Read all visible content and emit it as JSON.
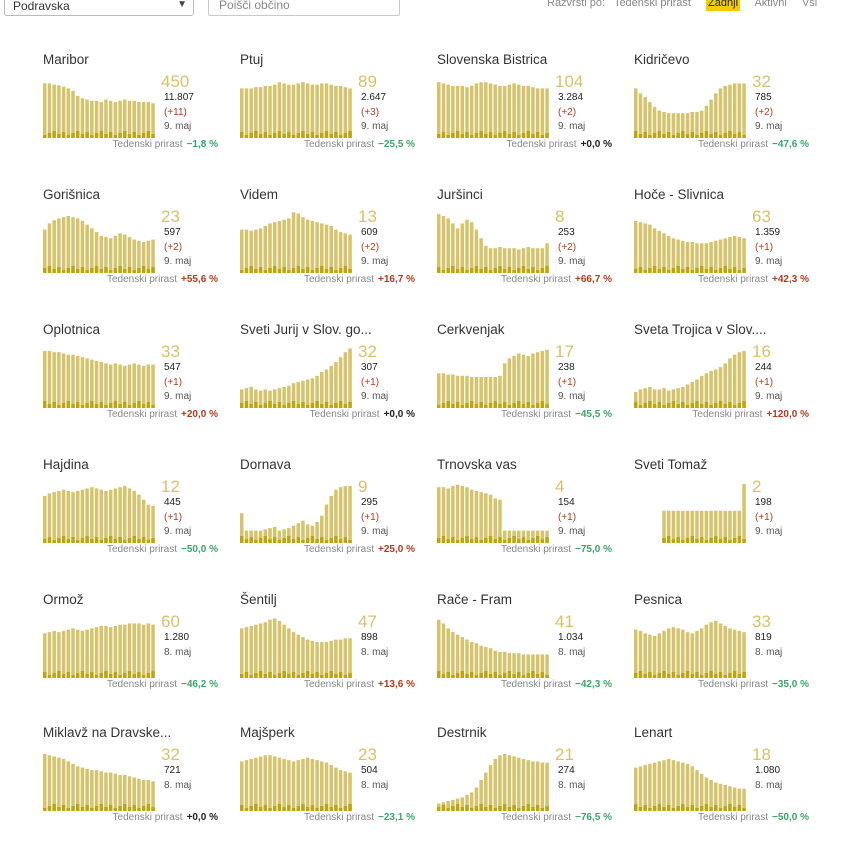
{
  "filters": {
    "region": "Podravska",
    "search_placeholder": "Poišči občino",
    "sort_label": "Razvrsti po:",
    "sort_options": [
      "Tedenski prirast",
      "Zadnji",
      "Aktivni",
      "Vsi"
    ],
    "sort_active": 1
  },
  "growth_label": "Tedenski prirast",
  "colors": {
    "bar": "#d6c36b",
    "bar_highlight": "#b9a000",
    "accent": "#f2cd00",
    "negative": "#3aa56b",
    "positive": "#b13b1f"
  },
  "municipalities": [
    {
      "name": "Maribor",
      "active": "450",
      "total": "11.807",
      "delta": "(+11)",
      "date": "9. maj",
      "growth": "−1,8 %",
      "trend": "neg",
      "bars": [
        0.88,
        0.88,
        0.86,
        0.85,
        0.83,
        0.8,
        0.76,
        0.68,
        0.64,
        0.62,
        0.6,
        0.6,
        0.58,
        0.62,
        0.6,
        0.58,
        0.6,
        0.62,
        0.6,
        0.6,
        0.58,
        0.58,
        0.58,
        0.56
      ]
    },
    {
      "name": "Ptuj",
      "active": "89",
      "total": "2.647",
      "delta": "(+3)",
      "date": "9. maj",
      "growth": "−25,5 %",
      "trend": "neg",
      "bars": [
        0.8,
        0.8,
        0.8,
        0.82,
        0.82,
        0.84,
        0.84,
        0.86,
        0.9,
        0.88,
        0.86,
        0.86,
        0.88,
        0.9,
        0.88,
        0.86,
        0.86,
        0.88,
        0.88,
        0.86,
        0.84,
        0.84,
        0.82,
        0.8
      ]
    },
    {
      "name": "Slovenska Bistrica",
      "active": "104",
      "total": "3.284",
      "delta": "(+2)",
      "date": "9. maj",
      "growth": "+0,0 %",
      "trend": "zero",
      "bars": [
        0.9,
        0.88,
        0.86,
        0.84,
        0.84,
        0.84,
        0.82,
        0.84,
        0.88,
        0.9,
        0.9,
        0.88,
        0.86,
        0.84,
        0.84,
        0.86,
        0.88,
        0.86,
        0.84,
        0.84,
        0.82,
        0.8,
        0.8,
        0.8
      ]
    },
    {
      "name": "Kidričevo",
      "active": "32",
      "total": "785",
      "delta": "(+2)",
      "date": "9. maj",
      "growth": "−47,6 %",
      "trend": "neg",
      "bars": [
        0.8,
        0.72,
        0.66,
        0.58,
        0.5,
        0.44,
        0.42,
        0.4,
        0.4,
        0.4,
        0.4,
        0.4,
        0.42,
        0.42,
        0.44,
        0.52,
        0.62,
        0.72,
        0.8,
        0.84,
        0.86,
        0.88,
        0.88,
        0.88
      ]
    },
    {
      "name": "Gorišnica",
      "active": "23",
      "total": "597",
      "delta": "(+2)",
      "date": "9. maj",
      "growth": "+55,6 %",
      "trend": "pos",
      "bars": [
        0.7,
        0.8,
        0.85,
        0.88,
        0.9,
        0.92,
        0.9,
        0.88,
        0.84,
        0.78,
        0.72,
        0.66,
        0.6,
        0.58,
        0.56,
        0.6,
        0.64,
        0.62,
        0.58,
        0.54,
        0.52,
        0.5,
        0.52,
        0.54
      ]
    },
    {
      "name": "Videm",
      "active": "13",
      "total": "609",
      "delta": "(+2)",
      "date": "9. maj",
      "growth": "+16,7 %",
      "trend": "pos",
      "bars": [
        0.7,
        0.7,
        0.68,
        0.7,
        0.72,
        0.76,
        0.8,
        0.82,
        0.84,
        0.86,
        0.88,
        0.98,
        0.96,
        0.9,
        0.86,
        0.84,
        0.82,
        0.8,
        0.78,
        0.76,
        0.7,
        0.66,
        0.64,
        0.62
      ]
    },
    {
      "name": "Juršinci",
      "active": "8",
      "total": "253",
      "delta": "(+2)",
      "date": "9. maj",
      "growth": "+66,7 %",
      "trend": "pos",
      "bars": [
        0.95,
        0.92,
        0.88,
        0.8,
        0.72,
        0.8,
        0.86,
        0.82,
        0.7,
        0.56,
        0.44,
        0.4,
        0.4,
        0.42,
        0.4,
        0.4,
        0.4,
        0.38,
        0.4,
        0.42,
        0.4,
        0.4,
        0.4,
        0.48
      ]
    },
    {
      "name": "Hoče - Slivnica",
      "active": "63",
      "total": "1.359",
      "delta": "(+1)",
      "date": "9. maj",
      "growth": "+42,3 %",
      "trend": "pos",
      "bars": [
        0.84,
        0.82,
        0.8,
        0.78,
        0.72,
        0.68,
        0.64,
        0.6,
        0.56,
        0.54,
        0.52,
        0.5,
        0.5,
        0.48,
        0.48,
        0.48,
        0.5,
        0.52,
        0.54,
        0.56,
        0.58,
        0.6,
        0.58,
        0.56
      ]
    },
    {
      "name": "Oplotnica",
      "active": "33",
      "total": "547",
      "delta": "(+1)",
      "date": "9. maj",
      "growth": "+20,0 %",
      "trend": "pos",
      "bars": [
        0.92,
        0.92,
        0.9,
        0.9,
        0.88,
        0.86,
        0.86,
        0.84,
        0.82,
        0.8,
        0.78,
        0.76,
        0.74,
        0.72,
        0.7,
        0.72,
        0.7,
        0.68,
        0.7,
        0.72,
        0.7,
        0.68,
        0.7,
        0.7
      ]
    },
    {
      "name": "Sveti Jurij v Slov. go...",
      "active": "32",
      "total": "307",
      "delta": "(+1)",
      "date": "9. maj",
      "growth": "+0,0 %",
      "trend": "zero",
      "bars": [
        0.3,
        0.32,
        0.34,
        0.3,
        0.28,
        0.3,
        0.28,
        0.3,
        0.32,
        0.34,
        0.36,
        0.4,
        0.42,
        0.44,
        0.46,
        0.48,
        0.52,
        0.58,
        0.62,
        0.68,
        0.74,
        0.82,
        0.9,
        0.96
      ]
    },
    {
      "name": "Cerkvenjak",
      "active": "17",
      "total": "238",
      "delta": "(+1)",
      "date": "9. maj",
      "growth": "−45,5 %",
      "trend": "neg",
      "bars": [
        0.56,
        0.56,
        0.54,
        0.54,
        0.52,
        0.52,
        0.52,
        0.5,
        0.5,
        0.5,
        0.5,
        0.5,
        0.5,
        0.52,
        0.72,
        0.8,
        0.84,
        0.88,
        0.86,
        0.84,
        0.88,
        0.9,
        0.92,
        0.94
      ]
    },
    {
      "name": "Sveta Trojica v Slov....",
      "active": "16",
      "total": "244",
      "delta": "(+1)",
      "date": "9. maj",
      "growth": "+120,0 %",
      "trend": "pos",
      "bars": [
        0.26,
        0.3,
        0.32,
        0.34,
        0.3,
        0.3,
        0.32,
        0.28,
        0.3,
        0.32,
        0.34,
        0.38,
        0.42,
        0.46,
        0.52,
        0.56,
        0.6,
        0.62,
        0.66,
        0.72,
        0.8,
        0.86,
        0.9,
        0.92
      ]
    },
    {
      "name": "Hajdina",
      "active": "12",
      "total": "445",
      "delta": "(+1)",
      "date": "9. maj",
      "growth": "−50,0 %",
      "trend": "neg",
      "bars": [
        0.76,
        0.8,
        0.82,
        0.84,
        0.86,
        0.84,
        0.82,
        0.84,
        0.86,
        0.88,
        0.9,
        0.88,
        0.86,
        0.84,
        0.86,
        0.88,
        0.9,
        0.92,
        0.88,
        0.84,
        0.78,
        0.7,
        0.62,
        0.6
      ]
    },
    {
      "name": "Dornava",
      "active": "9",
      "total": "295",
      "delta": "(+1)",
      "date": "9. maj",
      "growth": "+25,0 %",
      "trend": "pos",
      "bars": [
        0.48,
        0.2,
        0.2,
        0.2,
        0.2,
        0.22,
        0.24,
        0.26,
        0.2,
        0.22,
        0.24,
        0.28,
        0.32,
        0.36,
        0.3,
        0.28,
        0.34,
        0.44,
        0.62,
        0.76,
        0.86,
        0.9,
        0.92,
        0.92
      ]
    },
    {
      "name": "Trnovska vas",
      "active": "4",
      "total": "154",
      "delta": "(+1)",
      "date": "9. maj",
      "growth": "−75,0 %",
      "trend": "neg",
      "bars": [
        0.9,
        0.9,
        0.88,
        0.92,
        0.94,
        0.92,
        0.9,
        0.86,
        0.84,
        0.82,
        0.8,
        0.78,
        0.72,
        0.7,
        0.2,
        0.2,
        0.2,
        0.2,
        0.2,
        0.2,
        0.2,
        0.2,
        0.2,
        0.2
      ]
    },
    {
      "name": "Sveti Tomaž",
      "active": "2",
      "total": "198",
      "delta": "(+1)",
      "date": "9. maj",
      "growth": "",
      "trend": "none",
      "bars": [
        0,
        0,
        0,
        0,
        0,
        0,
        0.52,
        0.52,
        0.52,
        0.52,
        0.52,
        0.52,
        0.52,
        0.52,
        0.52,
        0.52,
        0.52,
        0.52,
        0.52,
        0.52,
        0.52,
        0.52,
        0.52,
        0.95
      ]
    },
    {
      "name": "Ormož",
      "active": "60",
      "total": "1.280",
      "delta": "",
      "date": "8. maj",
      "growth": "−46,2 %",
      "trend": "neg",
      "bars": [
        0.72,
        0.74,
        0.76,
        0.74,
        0.76,
        0.78,
        0.8,
        0.78,
        0.76,
        0.78,
        0.8,
        0.82,
        0.84,
        0.84,
        0.82,
        0.84,
        0.86,
        0.86,
        0.88,
        0.88,
        0.88,
        0.86,
        0.88,
        0.86
      ]
    },
    {
      "name": "Šentilj",
      "active": "47",
      "total": "898",
      "delta": "",
      "date": "8. maj",
      "growth": "+13,6 %",
      "trend": "pos",
      "bars": [
        0.8,
        0.82,
        0.84,
        0.86,
        0.88,
        0.9,
        0.94,
        0.96,
        0.92,
        0.86,
        0.8,
        0.74,
        0.7,
        0.66,
        0.62,
        0.6,
        0.58,
        0.58,
        0.58,
        0.6,
        0.62,
        0.62,
        0.64,
        0.64
      ]
    },
    {
      "name": "Rače - Fram",
      "active": "41",
      "total": "1.034",
      "delta": "",
      "date": "8. maj",
      "growth": "−42,3 %",
      "trend": "neg",
      "bars": [
        0.94,
        0.88,
        0.8,
        0.74,
        0.7,
        0.66,
        0.62,
        0.58,
        0.56,
        0.52,
        0.5,
        0.48,
        0.44,
        0.42,
        0.42,
        0.4,
        0.4,
        0.4,
        0.38,
        0.38,
        0.38,
        0.38,
        0.38,
        0.38
      ]
    },
    {
      "name": "Pesnica",
      "active": "33",
      "total": "819",
      "delta": "",
      "date": "8. maj",
      "growth": "−35,0 %",
      "trend": "neg",
      "bars": [
        0.78,
        0.76,
        0.72,
        0.7,
        0.68,
        0.72,
        0.76,
        0.8,
        0.82,
        0.8,
        0.78,
        0.74,
        0.72,
        0.76,
        0.8,
        0.86,
        0.9,
        0.92,
        0.88,
        0.84,
        0.8,
        0.78,
        0.76,
        0.74
      ]
    },
    {
      "name": "Miklavž na Dravske...",
      "active": "32",
      "total": "721",
      "delta": "",
      "date": "8. maj",
      "growth": "+0,0 %",
      "trend": "zero",
      "bars": [
        0.92,
        0.9,
        0.88,
        0.86,
        0.84,
        0.8,
        0.76,
        0.72,
        0.7,
        0.68,
        0.66,
        0.66,
        0.64,
        0.62,
        0.62,
        0.6,
        0.58,
        0.58,
        0.56,
        0.54,
        0.52,
        0.5,
        0.5,
        0.48
      ]
    },
    {
      "name": "Majšperk",
      "active": "23",
      "total": "504",
      "delta": "",
      "date": "8. maj",
      "growth": "−23,1 %",
      "trend": "neg",
      "bars": [
        0.8,
        0.82,
        0.84,
        0.86,
        0.88,
        0.9,
        0.9,
        0.88,
        0.86,
        0.84,
        0.82,
        0.8,
        0.82,
        0.84,
        0.86,
        0.84,
        0.82,
        0.8,
        0.78,
        0.74,
        0.7,
        0.66,
        0.64,
        0.62
      ]
    },
    {
      "name": "Destrnik",
      "active": "21",
      "total": "274",
      "delta": "",
      "date": "8. maj",
      "growth": "−76,5 %",
      "trend": "neg",
      "bars": [
        0.12,
        0.14,
        0.16,
        0.18,
        0.2,
        0.22,
        0.26,
        0.3,
        0.38,
        0.5,
        0.62,
        0.74,
        0.84,
        0.9,
        0.92,
        0.9,
        0.88,
        0.86,
        0.84,
        0.82,
        0.8,
        0.8,
        0.78,
        0.78
      ]
    },
    {
      "name": "Lenart",
      "active": "18",
      "total": "1.080",
      "delta": "",
      "date": "8. maj",
      "growth": "−50,0 %",
      "trend": "neg",
      "bars": [
        0.7,
        0.72,
        0.74,
        0.76,
        0.78,
        0.8,
        0.82,
        0.84,
        0.82,
        0.8,
        0.78,
        0.76,
        0.72,
        0.66,
        0.6,
        0.54,
        0.5,
        0.46,
        0.44,
        0.42,
        0.4,
        0.38,
        0.36,
        0.36
      ]
    }
  ]
}
